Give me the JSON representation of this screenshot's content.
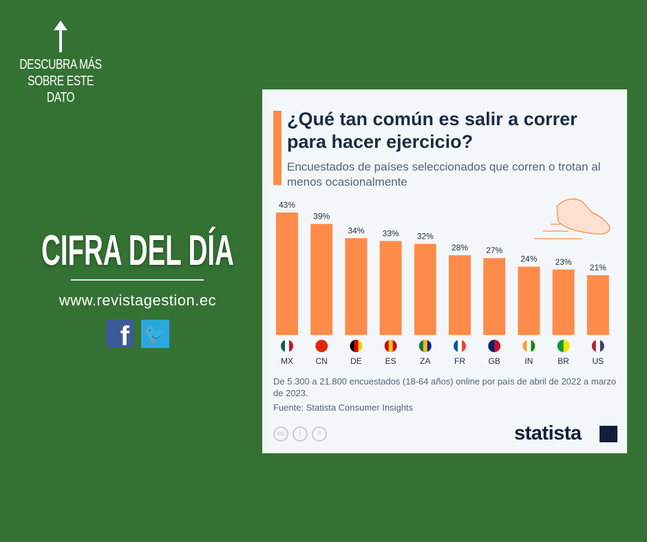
{
  "promo": {
    "cta_lines": [
      "DESCUBRA MÁS",
      "SOBRE ESTE",
      "DATO"
    ],
    "headline": "CIFRA DEL DÍA",
    "url": "www.revistagestion.ec",
    "social": [
      "facebook-icon",
      "twitter-icon"
    ]
  },
  "card": {
    "title": "¿Qué tan común es salir a correr para hacer ejercicio?",
    "subtitle": "Encuestados de países seleccionados que corren o trotan al menos ocasionalmente",
    "note": "De 5.300 a 21.800 encuestados (18-64 años) online por país de abril de 2022 a marzo de 2023.",
    "source": "Fuente: Statista Consumer Insights",
    "brand": "statista"
  },
  "colors": {
    "background": "#347234",
    "bar": "#ff8b4a",
    "accent": "#ff8b4a"
  },
  "chart_data": {
    "type": "bar",
    "title": "¿Qué tan común es salir a correr para hacer ejercicio?",
    "categories": [
      "MX",
      "CN",
      "DE",
      "ES",
      "ZA",
      "FR",
      "GB",
      "IN",
      "BR",
      "US"
    ],
    "values": [
      43,
      39,
      34,
      33,
      32,
      28,
      27,
      24,
      23,
      21
    ],
    "labels": [
      "43%",
      "39%",
      "34%",
      "33%",
      "32%",
      "28%",
      "27%",
      "24%",
      "23%",
      "21%"
    ],
    "unit": "%",
    "ylim": [
      0,
      43
    ],
    "grid": false
  }
}
